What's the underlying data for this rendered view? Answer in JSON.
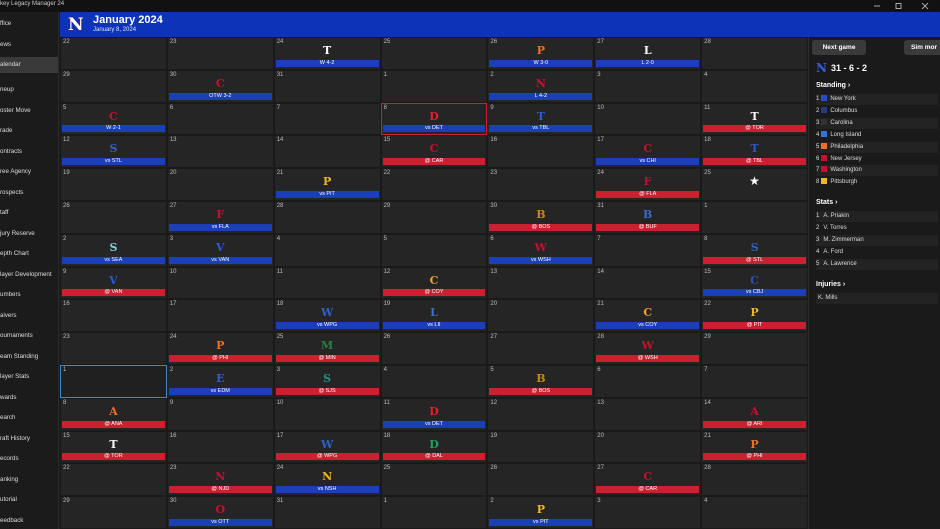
{
  "app_title": "key Legacy Manager 24",
  "sidebar": [
    "ffice",
    "ews",
    "alendar",
    "neup",
    "oster Move",
    "rade",
    "ontracts",
    "ree Agency",
    "rospects",
    "taff",
    "jury Reserve",
    "epth Chart",
    "layer Development",
    "umbers",
    "aivers",
    "ournaments",
    "eam Standing",
    "layer Stats",
    "wards",
    "earch",
    "raft History",
    "ecords",
    "anking",
    "utorial",
    "eedback"
  ],
  "active_nav": 2,
  "header": {
    "logo": "N",
    "title": "January 2024",
    "date": "January 8, 2024"
  },
  "calendar": {
    "rows": [
      [
        {
          "day": 22
        },
        {
          "day": 23
        },
        {
          "day": 24,
          "logo": "T",
          "logo_color": "#ffffff",
          "game": "W 4-2",
          "home": true
        },
        {
          "day": 25
        },
        {
          "day": 26,
          "logo": "P",
          "logo_color": "#f07020",
          "game": "W 3-0",
          "home": true
        },
        {
          "day": 27,
          "logo": "L",
          "logo_color": "#ffffff",
          "game": "L 2-0",
          "home": true
        },
        {
          "day": 28
        }
      ],
      [
        {
          "day": 29
        },
        {
          "day": 30,
          "logo": "C",
          "logo_color": "#c8102e",
          "game": "OTW 3-2",
          "home": true
        },
        {
          "day": 31
        },
        {
          "day": 1
        },
        {
          "day": 2,
          "logo": "N",
          "logo_color": "#c8102e",
          "game": "L 4-2",
          "home": true
        },
        {
          "day": 3
        },
        {
          "day": 4
        }
      ],
      [
        {
          "day": 5,
          "logo": "C",
          "logo_color": "#c8102e",
          "game": "W 2-1",
          "home": true
        },
        {
          "day": 6
        },
        {
          "day": 7
        },
        {
          "day": 8,
          "logo": "D",
          "logo_color": "#e0202e",
          "game": "vs DET",
          "home": true,
          "selected": true
        },
        {
          "day": 9,
          "logo": "T",
          "logo_color": "#2a5ad8",
          "game": "vs TBL",
          "home": true
        },
        {
          "day": 10
        },
        {
          "day": 11,
          "logo": "T",
          "logo_color": "#ffffff",
          "game": "@ TOR",
          "home": false
        }
      ],
      [
        {
          "day": 12,
          "logo": "S",
          "logo_color": "#3060c0",
          "game": "vs STL",
          "home": true
        },
        {
          "day": 13
        },
        {
          "day": 14
        },
        {
          "day": 15,
          "logo": "C",
          "logo_color": "#c8102e",
          "game": "@ CAR",
          "home": false
        },
        {
          "day": 16
        },
        {
          "day": 17,
          "logo": "C",
          "logo_color": "#c8102e",
          "game": "vs CHI",
          "home": true
        },
        {
          "day": 18,
          "logo": "T",
          "logo_color": "#2a5ad8",
          "game": "@ TBL",
          "home": false
        }
      ],
      [
        {
          "day": 19
        },
        {
          "day": 20
        },
        {
          "day": 21,
          "logo": "P",
          "logo_color": "#f0b820",
          "game": "vs PIT",
          "home": true
        },
        {
          "day": 22
        },
        {
          "day": 23
        },
        {
          "day": 24,
          "logo": "F",
          "logo_color": "#c8102e",
          "game": "@ FLA",
          "home": false
        },
        {
          "day": 25,
          "star": "★"
        }
      ],
      [
        {
          "day": 26
        },
        {
          "day": 27,
          "logo": "F",
          "logo_color": "#c8102e",
          "game": "vs FLA",
          "home": true
        },
        {
          "day": 28
        },
        {
          "day": 29
        },
        {
          "day": 30,
          "logo": "B",
          "logo_color": "#c88a10",
          "game": "@ BOS",
          "home": false
        },
        {
          "day": 31,
          "logo": "B",
          "logo_color": "#3a6ad0",
          "game": "@ BUF",
          "home": false
        },
        {
          "day": 1
        }
      ],
      [
        {
          "day": 2,
          "logo": "S",
          "logo_color": "#80d0e0",
          "game": "vs SEA",
          "home": true
        },
        {
          "day": 3,
          "logo": "V",
          "logo_color": "#2a5ad8",
          "game": "vs VAN",
          "home": true
        },
        {
          "day": 4
        },
        {
          "day": 5
        },
        {
          "day": 6,
          "logo": "W",
          "logo_color": "#c8102e",
          "game": "vs WSH",
          "home": true
        },
        {
          "day": 7
        },
        {
          "day": 8,
          "logo": "S",
          "logo_color": "#3060c0",
          "game": "@ STL",
          "home": false
        }
      ],
      [
        {
          "day": 9,
          "logo": "V",
          "logo_color": "#2a5ad8",
          "game": "@ VAN",
          "home": false
        },
        {
          "day": 10
        },
        {
          "day": 11
        },
        {
          "day": 12,
          "logo": "C",
          "logo_color": "#f0a030",
          "game": "@ COY",
          "home": false
        },
        {
          "day": 13
        },
        {
          "day": 14
        },
        {
          "day": 15,
          "logo": "C",
          "logo_color": "#3050b0",
          "game": "vs CBJ",
          "home": true
        }
      ],
      [
        {
          "day": 16
        },
        {
          "day": 17
        },
        {
          "day": 18,
          "logo": "W",
          "logo_color": "#3060c0",
          "game": "vs WPG",
          "home": true
        },
        {
          "day": 19,
          "logo": "L",
          "logo_color": "#3a70d0",
          "game": "vs LII",
          "home": true
        },
        {
          "day": 20
        },
        {
          "day": 21,
          "logo": "C",
          "logo_color": "#f0a030",
          "game": "vs COY",
          "home": true
        },
        {
          "day": 22,
          "logo": "P",
          "logo_color": "#f0b820",
          "game": "@ PIT",
          "home": false
        }
      ],
      [
        {
          "day": 23
        },
        {
          "day": 24,
          "logo": "P",
          "logo_color": "#f07020",
          "game": "@ PHI",
          "home": false
        },
        {
          "day": 25,
          "logo": "M",
          "logo_color": "#2a8040",
          "game": "@ MIN",
          "home": false
        },
        {
          "day": 26
        },
        {
          "day": 27
        },
        {
          "day": 28,
          "logo": "W",
          "logo_color": "#c8102e",
          "game": "@ WSH",
          "home": false
        },
        {
          "day": 29
        }
      ],
      [
        {
          "day": 1,
          "today": true
        },
        {
          "day": 2,
          "logo": "E",
          "logo_color": "#3a5ad0",
          "game": "vs EDM",
          "home": true
        },
        {
          "day": 3,
          "logo": "S",
          "logo_color": "#209080",
          "game": "@ SJS",
          "home": false
        },
        {
          "day": 4
        },
        {
          "day": 5,
          "logo": "B",
          "logo_color": "#c88a10",
          "game": "@ BOS",
          "home": false
        },
        {
          "day": 6
        },
        {
          "day": 7
        }
      ],
      [
        {
          "day": 8,
          "logo": "A",
          "logo_color": "#f07020",
          "game": "@ ANA",
          "home": false
        },
        {
          "day": 9
        },
        {
          "day": 10
        },
        {
          "day": 11,
          "logo": "D",
          "logo_color": "#e0202e",
          "game": "vs DET",
          "home": true
        },
        {
          "day": 12
        },
        {
          "day": 13
        },
        {
          "day": 14,
          "logo": "A",
          "logo_color": "#c8102e",
          "game": "@ ARI",
          "home": false
        }
      ],
      [
        {
          "day": 15,
          "logo": "T",
          "logo_color": "#ffffff",
          "game": "@ TOR",
          "home": false
        },
        {
          "day": 16
        },
        {
          "day": 17,
          "logo": "W",
          "logo_color": "#3060c0",
          "game": "@ WPG",
          "home": false
        },
        {
          "day": 18,
          "logo": "D",
          "logo_color": "#20a060",
          "game": "@ DAL",
          "home": false
        },
        {
          "day": 19
        },
        {
          "day": 20
        },
        {
          "day": 21,
          "logo": "P",
          "logo_color": "#f07020",
          "game": "@ PHI",
          "home": false
        }
      ],
      [
        {
          "day": 22
        },
        {
          "day": 23,
          "logo": "N",
          "logo_color": "#c8102e",
          "game": "@ NJD",
          "home": false
        },
        {
          "day": 24,
          "logo": "N",
          "logo_color": "#f0b820",
          "game": "vs NSH",
          "home": true
        },
        {
          "day": 25
        },
        {
          "day": 26
        },
        {
          "day": 27,
          "logo": "C",
          "logo_color": "#c8102e",
          "game": "@ CAR",
          "home": false
        },
        {
          "day": 28
        }
      ],
      [
        {
          "day": 29
        },
        {
          "day": 30,
          "logo": "O",
          "logo_color": "#c8102e",
          "game": "vs OTT",
          "home": true
        },
        {
          "day": 31
        },
        {
          "day": 1
        },
        {
          "day": 2,
          "logo": "P",
          "logo_color": "#f0b820",
          "game": "vs PIT",
          "home": true
        },
        {
          "day": 3
        },
        {
          "day": 4
        }
      ]
    ]
  },
  "panel": {
    "buttons": [
      "Next game",
      "Sim mor"
    ],
    "logo": "N",
    "record": "31 - 6 - 2",
    "standing": {
      "title": "Standing",
      "rows": [
        {
          "rank": 1,
          "team": "New York",
          "color": "#2a4ad0"
        },
        {
          "rank": 2,
          "team": "Columbus",
          "color": "#2a3a80"
        },
        {
          "rank": 3,
          "team": "Carolina",
          "color": "#333333"
        },
        {
          "rank": 4,
          "team": "Long Island",
          "color": "#3a70d0"
        },
        {
          "rank": 5,
          "team": "Philadelphia",
          "color": "#f07020"
        },
        {
          "rank": 6,
          "team": "New Jersey",
          "color": "#c8102e"
        },
        {
          "rank": 7,
          "team": "Washington",
          "color": "#c8102e"
        },
        {
          "rank": 8,
          "team": "Pittsburgh",
          "color": "#f0b820"
        }
      ]
    },
    "stats": {
      "title": "Stats",
      "rows": [
        {
          "rank": 1,
          "name": "A. Priakin"
        },
        {
          "rank": 2,
          "name": "V. Torres"
        },
        {
          "rank": 3,
          "name": "M. Zimmerman"
        },
        {
          "rank": 4,
          "name": "A. Ford"
        },
        {
          "rank": 5,
          "name": "A. Lawrence"
        }
      ]
    },
    "injuries": {
      "title": "Injuries",
      "rows": [
        "K. Mills"
      ]
    }
  }
}
